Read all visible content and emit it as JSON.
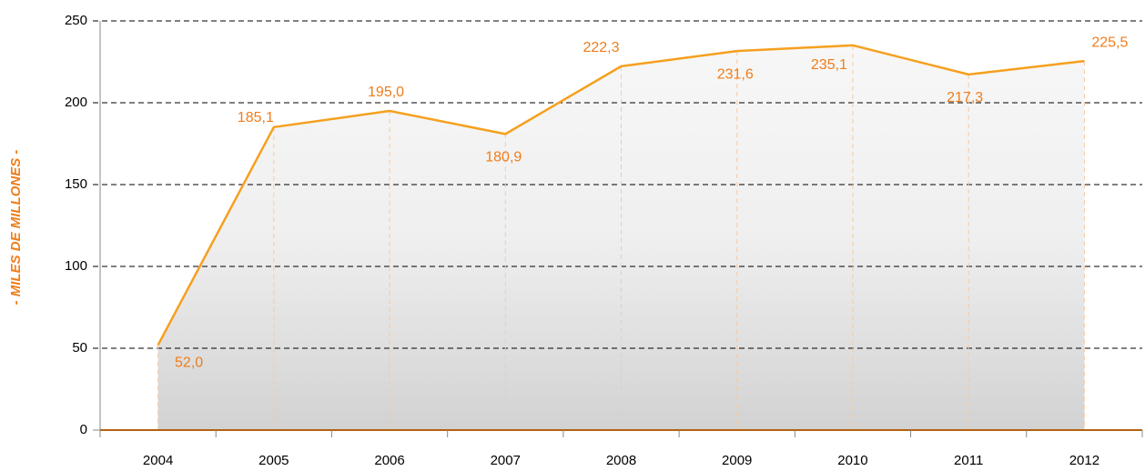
{
  "chart_data": {
    "type": "area",
    "y_label": "- MILES DE MILLONES -",
    "categories": [
      "2004",
      "2005",
      "2006",
      "2007",
      "2008",
      "2009",
      "2010",
      "2011",
      "2012"
    ],
    "values": [
      52.0,
      185.1,
      195.0,
      180.9,
      222.3,
      231.6,
      235.1,
      217.3,
      225.5
    ],
    "value_labels": [
      "52,0",
      "185,1",
      "195,0",
      "180,9",
      "222,3",
      "231,6",
      "235,1",
      "217,3",
      "225,5"
    ],
    "color": "#f5a01e",
    "ylim": [
      0,
      250
    ],
    "yticks": [
      0,
      50,
      100,
      150,
      200,
      250
    ],
    "grid": true
  }
}
